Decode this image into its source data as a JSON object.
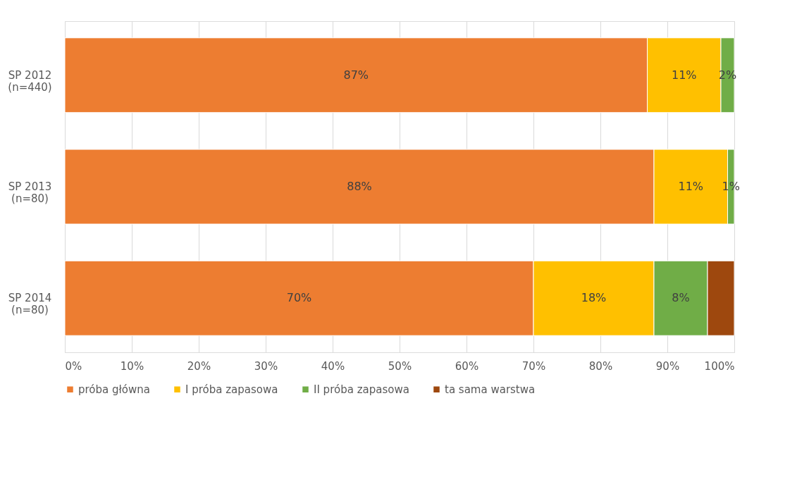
{
  "chart_data": {
    "type": "bar",
    "orientation": "horizontal",
    "stacked": true,
    "categories": [
      "SP 2012\n(n=440)",
      "SP 2013\n(n=80)",
      "SP 2014\n(n=80)"
    ],
    "series": [
      {
        "name": "próba główna",
        "color": "#ed7d31",
        "values": [
          87,
          88,
          70
        ],
        "value_labels": [
          "87%",
          "88%",
          "70%"
        ]
      },
      {
        "name": "I próba zapasowa",
        "color": "#ffc000",
        "values": [
          11,
          11,
          18
        ],
        "value_labels": [
          "11%",
          "11%",
          "18%"
        ]
      },
      {
        "name": "II próba zapasowa",
        "color": "#70ad47",
        "values": [
          2,
          1,
          8
        ],
        "value_labels": [
          "2%",
          "1%",
          "8%"
        ]
      },
      {
        "name": "ta sama warstwa",
        "color": "#9e480e",
        "values": [
          null,
          null,
          4
        ],
        "value_labels": [
          null,
          null,
          null
        ]
      }
    ],
    "xlim": [
      0,
      100
    ],
    "xticks": [
      {
        "value": 0,
        "label": "0%"
      },
      {
        "value": 10,
        "label": "10%"
      },
      {
        "value": 20,
        "label": "20%"
      },
      {
        "value": 30,
        "label": "30%"
      },
      {
        "value": 40,
        "label": "40%"
      },
      {
        "value": 50,
        "label": "50%"
      },
      {
        "value": 60,
        "label": "60%"
      },
      {
        "value": 70,
        "label": "70%"
      },
      {
        "value": 80,
        "label": "80%"
      },
      {
        "value": 90,
        "label": "90%"
      },
      {
        "value": 100,
        "label": "100%"
      }
    ],
    "grid": "x",
    "legend": "bottom"
  }
}
